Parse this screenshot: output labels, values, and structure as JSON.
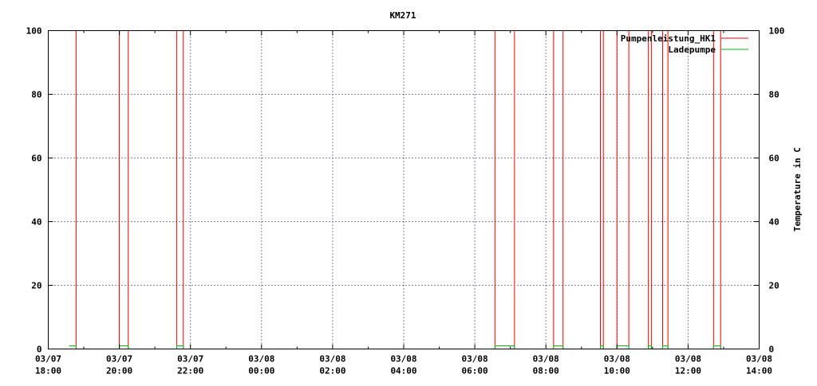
{
  "chart_data": {
    "type": "line",
    "title": "KM271",
    "ylabel": "",
    "y2label": "Temperature in C",
    "xlabel": "",
    "xlim": [
      "03/07 18:00",
      "03/08 14:00"
    ],
    "ylim": [
      0,
      100
    ],
    "y2lim": [
      0,
      100
    ],
    "yticks": [
      "0",
      "20",
      "40",
      "60",
      "80",
      "100"
    ],
    "xticks": [
      [
        "03/07",
        "18:00"
      ],
      [
        "03/07",
        "20:00"
      ],
      [
        "03/07",
        "22:00"
      ],
      [
        "03/08",
        "00:00"
      ],
      [
        "03/08",
        "02:00"
      ],
      [
        "03/08",
        "04:00"
      ],
      [
        "03/08",
        "06:00"
      ],
      [
        "03/08",
        "08:00"
      ],
      [
        "03/08",
        "10:00"
      ],
      [
        "03/08",
        "12:00"
      ],
      [
        "03/08",
        "14:00"
      ]
    ],
    "grid": true,
    "legend_position": "top-right",
    "step": true,
    "series": [
      {
        "name": "Pumpenleistung_HK1",
        "color": "#ff0000",
        "points": [
          [
            "03/07 18:35",
            100
          ],
          [
            "03/07 18:47",
            0
          ],
          [
            "03/07 20:00",
            100
          ],
          [
            "03/07 20:15",
            0
          ],
          [
            "03/07 21:37",
            100
          ],
          [
            "03/07 21:48",
            0
          ],
          [
            "03/08 06:34",
            100
          ],
          [
            "03/08 07:07",
            0
          ],
          [
            "03/08 08:13",
            100
          ],
          [
            "03/08 08:29",
            0
          ],
          [
            "03/08 09:32",
            100
          ],
          [
            "03/08 09:37",
            0
          ],
          [
            "03/08 10:00",
            100
          ],
          [
            "03/08 10:20",
            0
          ],
          [
            "03/08 10:53",
            100
          ],
          [
            "03/08 10:58",
            0
          ],
          [
            "03/08 11:17",
            100
          ],
          [
            "03/08 11:26",
            0
          ],
          [
            "03/08 12:43",
            100
          ],
          [
            "03/08 12:55",
            0
          ],
          [
            "03/08 13:00",
            0
          ]
        ]
      },
      {
        "name": "Ladepumpe",
        "color": "#00c000",
        "points": [
          [
            "03/07 18:35",
            1
          ],
          [
            "03/07 18:47",
            0
          ],
          [
            "03/07 20:00",
            1
          ],
          [
            "03/07 20:15",
            0
          ],
          [
            "03/07 21:37",
            1
          ],
          [
            "03/07 21:48",
            0
          ],
          [
            "03/08 06:34",
            1
          ],
          [
            "03/08 07:07",
            0
          ],
          [
            "03/08 08:13",
            1
          ],
          [
            "03/08 08:29",
            0
          ],
          [
            "03/08 09:32",
            1
          ],
          [
            "03/08 09:37",
            0
          ],
          [
            "03/08 10:00",
            1
          ],
          [
            "03/08 10:20",
            0
          ],
          [
            "03/08 10:53",
            1
          ],
          [
            "03/08 10:58",
            0
          ],
          [
            "03/08 11:17",
            1
          ],
          [
            "03/08 11:26",
            0
          ],
          [
            "03/08 12:43",
            1
          ],
          [
            "03/08 12:55",
            0
          ],
          [
            "03/08 13:00",
            0
          ]
        ]
      }
    ]
  }
}
